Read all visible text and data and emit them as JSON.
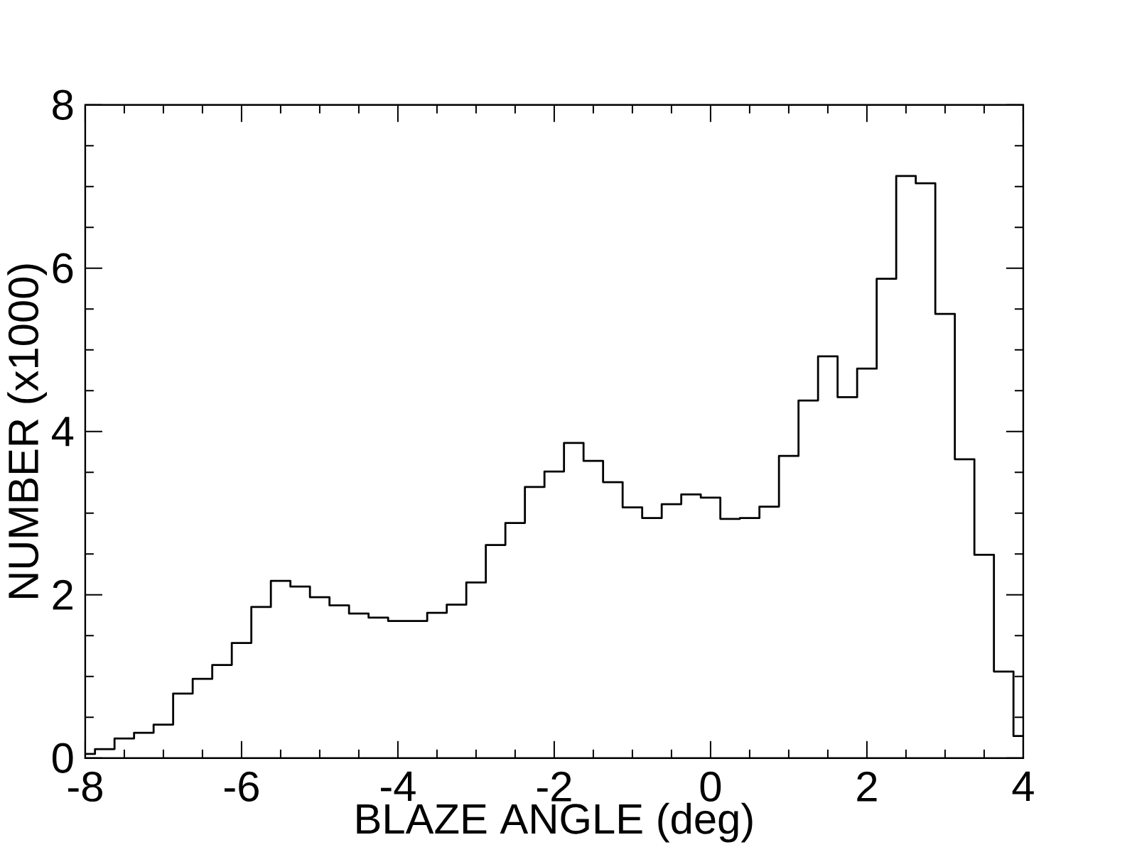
{
  "chart_data": {
    "type": "histogram",
    "xlabel": "BLAZE ANGLE (deg)",
    "ylabel": "NUMBER (x1000)",
    "bins": [
      -8,
      -7.875,
      -7.625,
      -7.375,
      -7.125,
      -6.875,
      -6.625,
      -6.375,
      -6.125,
      -5.875,
      -5.625,
      -5.375,
      -5.125,
      -4.875,
      -4.625,
      -4.375,
      -4.125,
      -3.875,
      -3.625,
      -3.375,
      -3.125,
      -2.875,
      -2.625,
      -2.375,
      -2.125,
      -1.875,
      -1.625,
      -1.375,
      -1.125,
      -0.875,
      -0.625,
      -0.375,
      -0.125,
      0.125,
      0.375,
      0.625,
      0.875,
      1.125,
      1.375,
      1.625,
      1.875,
      2.125,
      2.375,
      2.625,
      2.875,
      3.125,
      3.375,
      3.625,
      3.875,
      4
    ],
    "values": [
      0.05,
      0.11,
      0.24,
      0.31,
      0.41,
      0.79,
      0.97,
      1.14,
      1.41,
      1.85,
      2.17,
      2.1,
      1.97,
      1.87,
      1.77,
      1.72,
      1.68,
      1.68,
      1.78,
      1.88,
      2.15,
      2.61,
      2.88,
      3.32,
      3.51,
      3.86,
      3.64,
      3.38,
      3.07,
      2.94,
      3.11,
      3.23,
      3.19,
      2.93,
      2.94,
      3.08,
      3.7,
      4.38,
      4.92,
      4.42,
      4.77,
      5.87,
      7.13,
      7.04,
      5.44,
      3.66,
      2.49,
      1.06,
      0.27
    ],
    "color": "#000000",
    "xlim": [
      -8,
      4
    ],
    "ylim": [
      0,
      8
    ],
    "xticks": [
      -8,
      {
        "value": -7.5,
        "label": null
      },
      {
        "value": -7,
        "label": null
      },
      {
        "value": -6.5,
        "label": null
      },
      -6,
      {
        "value": -5.5,
        "label": null
      },
      {
        "value": -5,
        "label": null
      },
      {
        "value": -4.5,
        "label": null
      },
      -4,
      {
        "value": -3.5,
        "label": null
      },
      {
        "value": -3,
        "label": null
      },
      {
        "value": -2.5,
        "label": null
      },
      -2,
      {
        "value": -1.5,
        "label": null
      },
      {
        "value": -1,
        "label": null
      },
      {
        "value": -0.5,
        "label": null
      },
      0,
      {
        "value": 0.5,
        "label": null
      },
      {
        "value": 1,
        "label": null
      },
      {
        "value": 1.5,
        "label": null
      },
      2,
      {
        "value": 2.5,
        "label": null
      },
      {
        "value": 3,
        "label": null
      },
      {
        "value": 3.5,
        "label": null
      },
      4
    ],
    "yticks": [
      0,
      {
        "value": 0.5,
        "label": null
      },
      {
        "value": 1,
        "label": null
      },
      {
        "value": 1.5,
        "label": null
      },
      2,
      {
        "value": 2.5,
        "label": null
      },
      {
        "value": 3,
        "label": null
      },
      {
        "value": 3.5,
        "label": null
      },
      4,
      {
        "value": 4.5,
        "label": null
      },
      {
        "value": 5,
        "label": null
      },
      {
        "value": 5.5,
        "label": null
      },
      6,
      {
        "value": 6.5,
        "label": null
      },
      {
        "value": 7,
        "label": null
      },
      {
        "value": 7.5,
        "label": null
      },
      8
    ]
  }
}
